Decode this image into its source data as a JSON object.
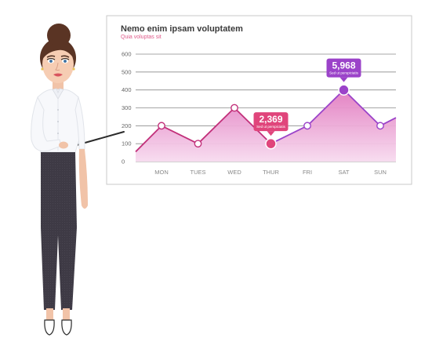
{
  "colors": {
    "accent": "#e0457b",
    "accent_dark": "#c2307a",
    "purple": "#9b43c9",
    "area_top": "#e27bc0",
    "area_bottom": "#f7dbef",
    "grid": "#8a8a8a"
  },
  "chart_data": {
    "type": "area",
    "title": "Nemo enim ipsam voluptatem",
    "subtitle": "Quia voluptas sit",
    "categories": [
      "MON",
      "TUES",
      "WED",
      "THUR",
      "FRI",
      "SAT",
      "SUN"
    ],
    "values": [
      200,
      100,
      300,
      100,
      200,
      400,
      200
    ],
    "series_start": 55,
    "series_end": 245,
    "yticks": [
      0,
      100,
      200,
      300,
      400,
      500,
      600
    ],
    "ylim": [
      0,
      600
    ],
    "grid": true,
    "callouts": [
      {
        "category": "THUR",
        "value": "2,369",
        "label": "Sed ut perspiciatis",
        "color": "#e0457b"
      },
      {
        "category": "SAT",
        "value": "5,968",
        "label": "Sed ut perspiciatis",
        "color": "#9b43c9"
      }
    ]
  }
}
